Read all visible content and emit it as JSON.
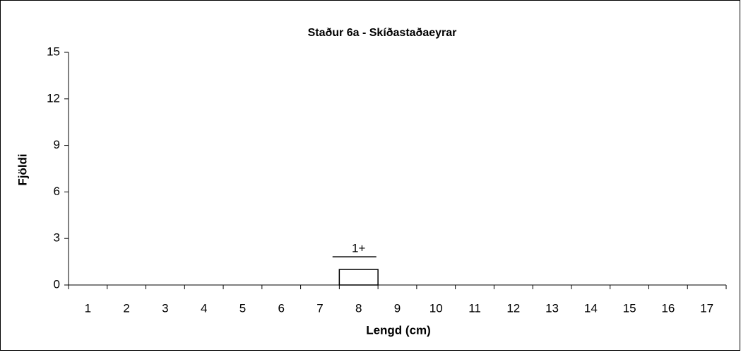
{
  "chart_data": {
    "type": "bar",
    "title": "Staður 6a - Skíðastaðaeyrar",
    "x_label": "Lengd (cm)",
    "y_label": "Fjöldi",
    "categories": [
      "1",
      "2",
      "3",
      "4",
      "5",
      "6",
      "7",
      "8",
      "9",
      "10",
      "11",
      "12",
      "13",
      "14",
      "15",
      "16",
      "17"
    ],
    "values": [
      0,
      0,
      0,
      0,
      0,
      0,
      0,
      1,
      0,
      0,
      0,
      0,
      0,
      0,
      0,
      0,
      0
    ],
    "color": "#ffffff",
    "edge_color": "#000000",
    "ylim": [
      0,
      15
    ],
    "yticks": [
      0,
      3,
      6,
      9,
      12,
      15
    ],
    "grid": false,
    "annotation": {
      "text": "1+",
      "category": "8"
    }
  }
}
